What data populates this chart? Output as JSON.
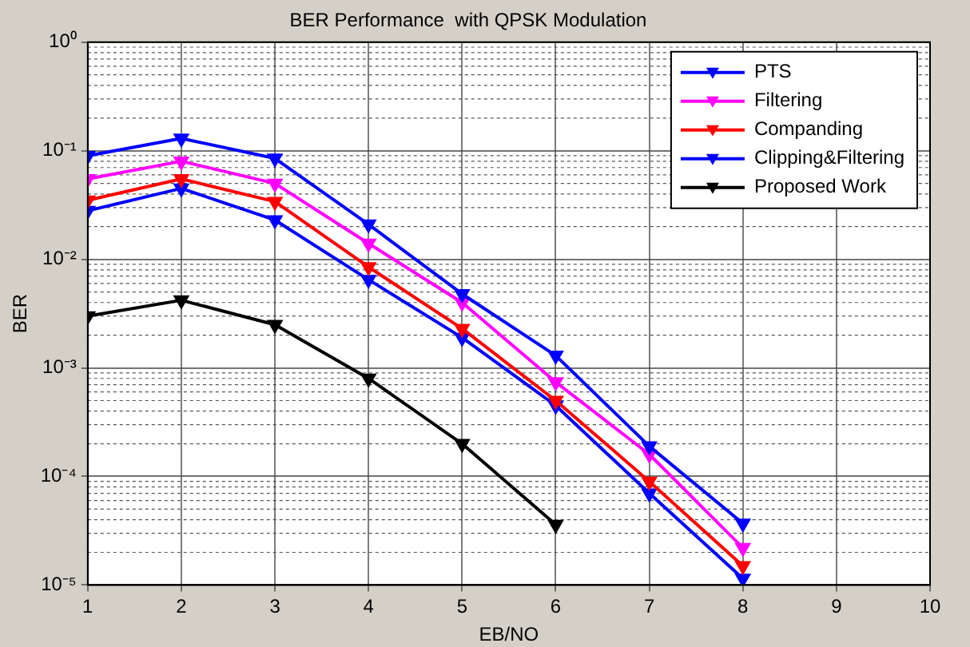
{
  "chart_data": {
    "type": "line",
    "title": "BER Performance  with QPSK Modulation",
    "xlabel": "EB/NO",
    "ylabel": "BER",
    "x": [
      1,
      2,
      3,
      4,
      5,
      6,
      7,
      8
    ],
    "series": [
      {
        "name": "PTS",
        "color": "#0000ff",
        "values": [
          0.09,
          0.13,
          0.085,
          0.021,
          0.0048,
          0.0013,
          0.00019,
          3.7e-05
        ]
      },
      {
        "name": "Filtering",
        "color": "#ff00ff",
        "values": [
          0.055,
          0.08,
          0.05,
          0.014,
          0.004,
          0.00074,
          0.00016,
          2.2e-05
        ]
      },
      {
        "name": "Companding",
        "color": "#ff0000",
        "values": [
          0.035,
          0.055,
          0.034,
          0.0085,
          0.0023,
          0.0005,
          9e-05,
          1.5e-05
        ]
      },
      {
        "name": "Clipping&Filtering",
        "color": "#0000ff",
        "values": [
          0.028,
          0.045,
          0.023,
          0.0065,
          0.0019,
          0.00045,
          7e-05,
          1.15e-05
        ]
      },
      {
        "name": "Proposed Work",
        "color": "#000000",
        "values": [
          0.003,
          0.0042,
          0.0025,
          0.0008,
          0.0002,
          3.6e-05,
          null,
          null
        ]
      }
    ],
    "xlim": [
      1,
      10
    ],
    "xticks": [
      1,
      2,
      3,
      4,
      5,
      6,
      7,
      8,
      9,
      10
    ],
    "ylim": [
      1e-05,
      1
    ],
    "yticks": [
      {
        "value": 1e-05,
        "label": "10⁻⁵"
      },
      {
        "value": 0.0001,
        "label": "10⁻⁴"
      },
      {
        "value": 0.001,
        "label": "10⁻³"
      },
      {
        "value": 0.01,
        "label": "10⁻²"
      },
      {
        "value": 0.1,
        "label": "10⁻¹"
      },
      {
        "value": 1,
        "label": "10⁰"
      }
    ],
    "log": "y",
    "grid": true,
    "legend": "top right",
    "marker": "triangle",
    "line_style": "solid"
  }
}
